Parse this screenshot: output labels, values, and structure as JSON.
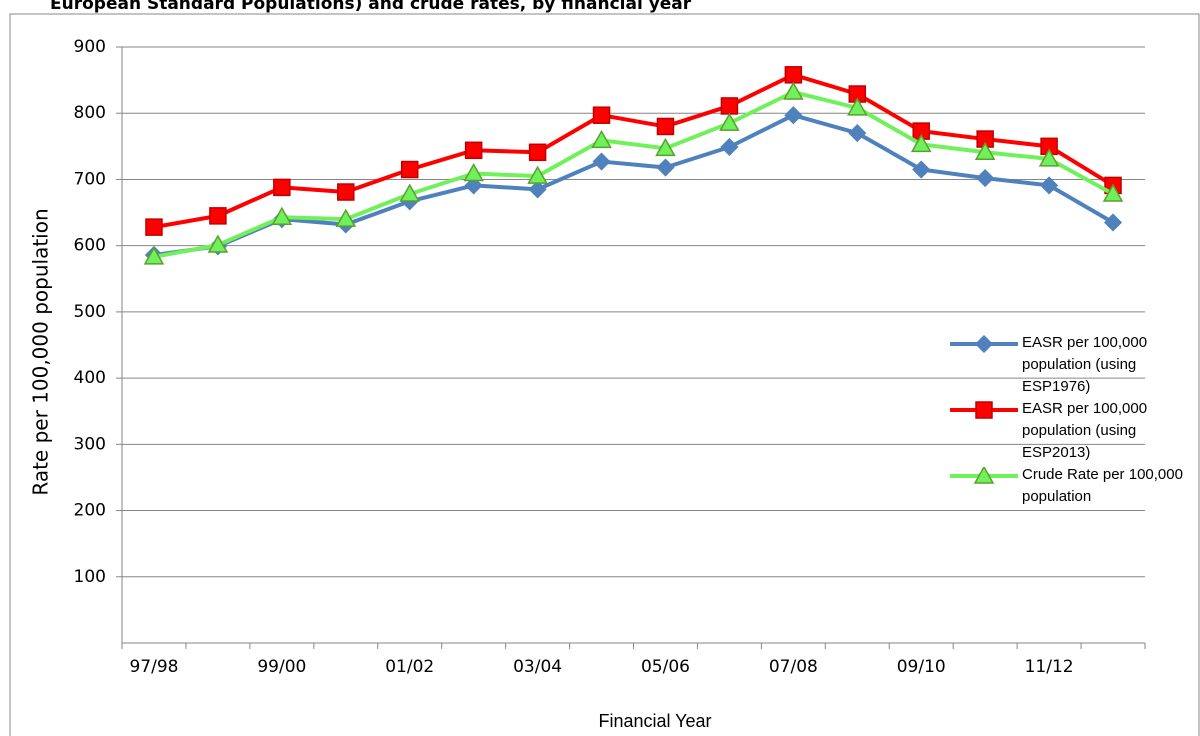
{
  "chart_data": {
    "type": "line",
    "title": "European Standard Populations) and crude rates, by financial year",
    "x_label": "Financial Year",
    "y_label": "Rate per 100,000 population",
    "categories": [
      "97/98",
      null,
      "99/00",
      null,
      "01/02",
      null,
      "03/04",
      null,
      "05/06",
      null,
      "07/08",
      null,
      "09/10",
      null,
      "11/12",
      null
    ],
    "series": [
      {
        "name": "EASR per 100,000 population (using ESP1976)",
        "color": "#4f81bd",
        "marker": "diamond",
        "values": [
          586,
          599,
          640,
          632,
          667,
          691,
          685,
          727,
          718,
          749,
          797,
          770,
          715,
          702,
          691,
          635
        ]
      },
      {
        "name": "EASR per 100,000 population (using ESP2013)",
        "color": "#ff0000",
        "marker": "square",
        "values": [
          628,
          645,
          688,
          681,
          715,
          744,
          741,
          797,
          780,
          811,
          858,
          829,
          773,
          761,
          750,
          691
        ]
      },
      {
        "name": "Crude Rate per 100,000 population",
        "color": "#70f05a",
        "marker": "triangle",
        "values": [
          583,
          601,
          643,
          640,
          678,
          709,
          705,
          759,
          747,
          785,
          832,
          808,
          753,
          741,
          731,
          678
        ]
      }
    ],
    "ylim": [
      0,
      900
    ],
    "yticks": [
      100,
      200,
      300,
      400,
      500,
      600,
      700,
      800,
      900
    ],
    "grid": true,
    "legend": "right"
  }
}
